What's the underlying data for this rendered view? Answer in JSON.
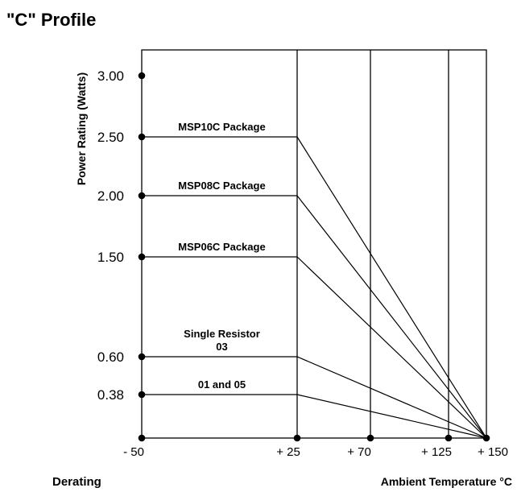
{
  "header": {
    "title": "\"C\" Profile"
  },
  "footer": {
    "left": "Derating",
    "right": "Ambient Temperature °C"
  },
  "chart_data": {
    "type": "line",
    "ylabel": "Power Rating (Watts)",
    "yticks": [
      {
        "value": 3.0,
        "label": "3.00"
      },
      {
        "value": 2.5,
        "label": "2.50"
      },
      {
        "value": 2.0,
        "label": "2.00"
      },
      {
        "value": 1.5,
        "label": "1.50"
      },
      {
        "value": 0.6,
        "label": "0.60"
      },
      {
        "value": 0.38,
        "label": "0.38"
      }
    ],
    "xticks": [
      {
        "value": -50,
        "label": "- 50"
      },
      {
        "value": 25,
        "label": "+ 25"
      },
      {
        "value": 70,
        "label": "+ 70"
      },
      {
        "value": 125,
        "label": "+ 125"
      },
      {
        "value": 150,
        "label": "+ 150"
      }
    ],
    "series": [
      {
        "name": "MSP10C Package",
        "x": [
          -50,
          25,
          150
        ],
        "y": [
          2.5,
          2.5,
          0
        ]
      },
      {
        "name": "MSP08C Package",
        "x": [
          -50,
          25,
          150
        ],
        "y": [
          2.0,
          2.0,
          0
        ]
      },
      {
        "name": "MSP06C Package",
        "x": [
          -50,
          25,
          150
        ],
        "y": [
          1.5,
          1.5,
          0
        ]
      },
      {
        "name": "Single Resistor 03",
        "label_lines": [
          "Single Resistor",
          "03"
        ],
        "x": [
          -50,
          25,
          150
        ],
        "y": [
          0.6,
          0.6,
          0
        ]
      },
      {
        "name": "01 and 05",
        "x": [
          -50,
          25,
          150
        ],
        "y": [
          0.38,
          0.38,
          0
        ]
      }
    ]
  }
}
